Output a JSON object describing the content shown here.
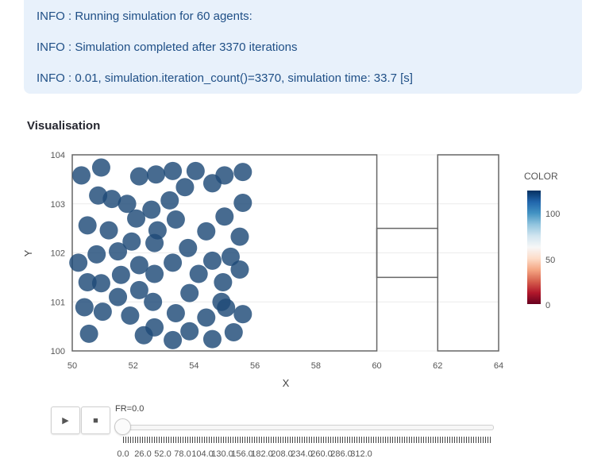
{
  "info": {
    "lines": [
      "INFO : Running simulation for 60 agents:",
      "INFO : Simulation completed after 3370 iterations",
      "INFO : 0.01, simulation.iteration_count()=3370, simulation time: 33.7 [s]"
    ]
  },
  "section_title": "Visualisation",
  "chart_data": {
    "type": "scatter",
    "title": "",
    "xlabel": "X",
    "ylabel": "Y",
    "xlim": [
      50,
      64
    ],
    "ylim": [
      100,
      104
    ],
    "x_ticks": [
      "50",
      "52",
      "54",
      "56",
      "58",
      "60",
      "62",
      "64"
    ],
    "y_ticks": [
      "100",
      "101",
      "102",
      "103",
      "104"
    ],
    "agent_radius": 0.3,
    "agent_color": "#1e4a78",
    "agents": [
      [
        50.3,
        103.58
      ],
      [
        50.95,
        103.74
      ],
      [
        52.2,
        103.56
      ],
      [
        52.75,
        103.6
      ],
      [
        53.3,
        103.67
      ],
      [
        54.05,
        103.67
      ],
      [
        55.0,
        103.58
      ],
      [
        55.6,
        103.65
      ],
      [
        50.85,
        103.17
      ],
      [
        51.3,
        103.1
      ],
      [
        51.8,
        103.0
      ],
      [
        53.2,
        103.07
      ],
      [
        53.7,
        103.34
      ],
      [
        54.6,
        103.42
      ],
      [
        55.6,
        103.02
      ],
      [
        52.6,
        102.88
      ],
      [
        50.5,
        102.56
      ],
      [
        51.2,
        102.46
      ],
      [
        52.1,
        102.7
      ],
      [
        52.8,
        102.46
      ],
      [
        53.4,
        102.68
      ],
      [
        54.4,
        102.44
      ],
      [
        55.0,
        102.74
      ],
      [
        55.5,
        102.33
      ],
      [
        50.2,
        101.8
      ],
      [
        50.8,
        101.97
      ],
      [
        51.5,
        102.03
      ],
      [
        51.95,
        102.23
      ],
      [
        52.7,
        102.2
      ],
      [
        53.8,
        102.1
      ],
      [
        54.6,
        101.84
      ],
      [
        55.2,
        101.92
      ],
      [
        50.5,
        101.4
      ],
      [
        50.95,
        101.38
      ],
      [
        51.6,
        101.55
      ],
      [
        52.2,
        101.75
      ],
      [
        52.7,
        101.57
      ],
      [
        53.3,
        101.8
      ],
      [
        54.15,
        101.57
      ],
      [
        55.5,
        101.66
      ],
      [
        50.4,
        100.89
      ],
      [
        51.0,
        100.8
      ],
      [
        51.5,
        101.1
      ],
      [
        52.2,
        101.24
      ],
      [
        52.65,
        101.0
      ],
      [
        53.4,
        100.77
      ],
      [
        53.85,
        101.18
      ],
      [
        54.95,
        101.4
      ],
      [
        50.55,
        100.35
      ],
      [
        51.9,
        100.72
      ],
      [
        52.35,
        100.32
      ],
      [
        52.7,
        100.48
      ],
      [
        53.3,
        100.22
      ],
      [
        53.85,
        100.4
      ],
      [
        54.4,
        100.68
      ],
      [
        54.6,
        100.24
      ],
      [
        55.05,
        100.88
      ],
      [
        55.3,
        100.38
      ],
      [
        55.6,
        100.75
      ],
      [
        54.9,
        101.0
      ]
    ],
    "geometry_polygons": [
      [
        [
          50,
          100
        ],
        [
          60,
          100
        ],
        [
          60,
          104
        ],
        [
          50,
          104
        ]
      ],
      [
        [
          60,
          101.5
        ],
        [
          62,
          101.5
        ],
        [
          62,
          102.5
        ],
        [
          60,
          102.5
        ]
      ],
      [
        [
          62,
          100
        ],
        [
          64,
          100
        ],
        [
          64,
          104
        ],
        [
          62,
          104
        ]
      ]
    ],
    "colorbar": {
      "title": "COLOR",
      "ticks": [
        "0",
        "50",
        "100"
      ],
      "colors": [
        "#053061",
        "#2166ac",
        "#4393c3",
        "#92c5de",
        "#d1e5f0",
        "#f7f7f7",
        "#fddbc7",
        "#f4a582",
        "#d6604d",
        "#b2182b",
        "#67001f"
      ]
    }
  },
  "animation": {
    "play_label": "▶",
    "stop_label": "■",
    "frame_label": "FR=0.0",
    "slider_value": 0,
    "slider_labels": [
      "0.0",
      "26.0",
      "52.0",
      "78.0",
      "104.0",
      "130.0",
      "156.0",
      "182.0",
      "208.0",
      "234.0",
      "260.0",
      "286.0",
      "312.0"
    ]
  }
}
